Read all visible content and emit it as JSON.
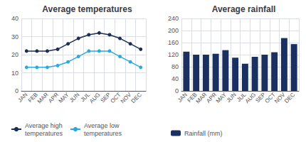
{
  "chart_data": [
    {
      "type": "line",
      "title": "Average temperatures",
      "categories": [
        "JAN",
        "FEB",
        "MAR",
        "APR",
        "MAY",
        "JUN",
        "JUL",
        "AUG",
        "SEP",
        "OCT",
        "NOV",
        "DEC"
      ],
      "series": [
        {
          "name": "Average high\ntemperatures",
          "color": "#1a2e5a",
          "marker": "circle",
          "values": [
            22,
            22,
            22,
            23,
            26,
            29,
            31,
            32,
            31,
            29,
            26,
            23
          ]
        },
        {
          "name": "Average low\ntemperatures",
          "color": "#29abe2",
          "marker": "circle",
          "values": [
            13,
            13,
            13,
            14,
            16,
            19,
            22,
            22,
            22,
            19,
            16,
            13
          ]
        }
      ],
      "ylim": [
        0,
        40
      ],
      "yticks": [
        0,
        10,
        20,
        30,
        40
      ],
      "grid": true,
      "legend": "bottom"
    },
    {
      "type": "bar",
      "title": "Average rainfall",
      "categories": [
        "JAN",
        "FEB",
        "MAR",
        "APR",
        "MAY",
        "JUN",
        "JUL",
        "AUG",
        "SEP",
        "OCT",
        "NOV",
        "DEC"
      ],
      "series": [
        {
          "name": "Rainfall (mm)",
          "color": "#1a3060",
          "values": [
            130,
            120,
            120,
            123,
            135,
            110,
            90,
            113,
            120,
            128,
            175,
            155
          ]
        }
      ],
      "ylim": [
        0,
        240
      ],
      "yticks": [
        0,
        40,
        80,
        120,
        160,
        200,
        240
      ],
      "grid": true,
      "legend": "bottom"
    }
  ]
}
